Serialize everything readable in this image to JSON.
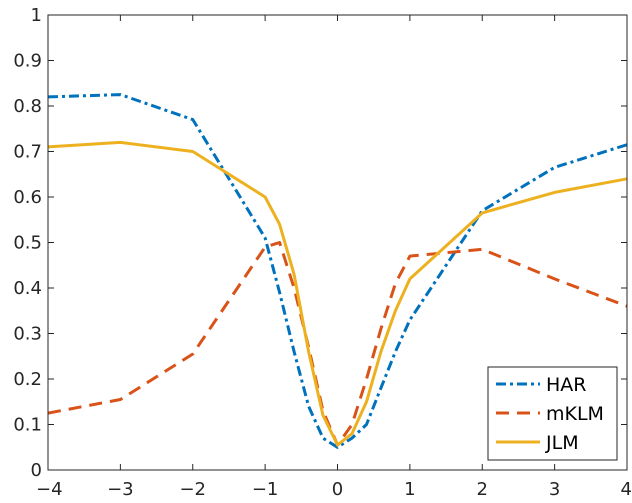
{
  "chart_data": {
    "type": "line",
    "title": "",
    "xlabel": "",
    "ylabel": "",
    "xlim": [
      -4,
      4
    ],
    "ylim": [
      0,
      1
    ],
    "xticks": [
      -4,
      -3,
      -2,
      -1,
      0,
      1,
      2,
      3,
      4
    ],
    "xtick_labels": [
      "−4",
      "−3",
      "−2",
      "−1",
      "0",
      "1",
      "2",
      "3",
      "4"
    ],
    "yticks": [
      0,
      0.1,
      0.2,
      0.3,
      0.4,
      0.5,
      0.6,
      0.7,
      0.8,
      0.9,
      1
    ],
    "ytick_labels": [
      "0",
      "0.1",
      "0.2",
      "0.3",
      "0.4",
      "0.5",
      "0.6",
      "0.7",
      "0.8",
      "0.9",
      "1"
    ],
    "grid": false,
    "legend_position": "bottom-right",
    "series": [
      {
        "name": "HAR",
        "color": "#0072BD",
        "style": "dash-dot",
        "x": [
          -4,
          -3,
          -2,
          -1,
          -0.8,
          -0.6,
          -0.4,
          -0.2,
          0,
          0.2,
          0.4,
          0.6,
          0.8,
          1,
          2,
          3,
          4
        ],
        "y": [
          0.82,
          0.825,
          0.77,
          0.51,
          0.39,
          0.26,
          0.14,
          0.07,
          0.05,
          0.07,
          0.1,
          0.18,
          0.26,
          0.33,
          0.57,
          0.665,
          0.715
        ]
      },
      {
        "name": "mKLM",
        "color": "#D95319",
        "style": "dashed",
        "x": [
          -4,
          -3,
          -2,
          -1,
          -0.8,
          -0.6,
          -0.4,
          -0.2,
          0,
          0.2,
          0.4,
          0.6,
          0.8,
          1,
          2,
          3,
          4
        ],
        "y": [
          0.125,
          0.155,
          0.255,
          0.49,
          0.5,
          0.4,
          0.27,
          0.13,
          0.055,
          0.1,
          0.2,
          0.31,
          0.41,
          0.47,
          0.485,
          0.42,
          0.36
        ]
      },
      {
        "name": "JLM",
        "color": "#EDB120",
        "style": "solid",
        "x": [
          -4,
          -3,
          -2,
          -1,
          -0.8,
          -0.6,
          -0.4,
          -0.2,
          0,
          0.2,
          0.4,
          0.6,
          0.8,
          1,
          2,
          3,
          4
        ],
        "y": [
          0.71,
          0.72,
          0.7,
          0.6,
          0.54,
          0.43,
          0.26,
          0.12,
          0.055,
          0.08,
          0.15,
          0.26,
          0.35,
          0.42,
          0.565,
          0.61,
          0.64
        ]
      }
    ]
  }
}
